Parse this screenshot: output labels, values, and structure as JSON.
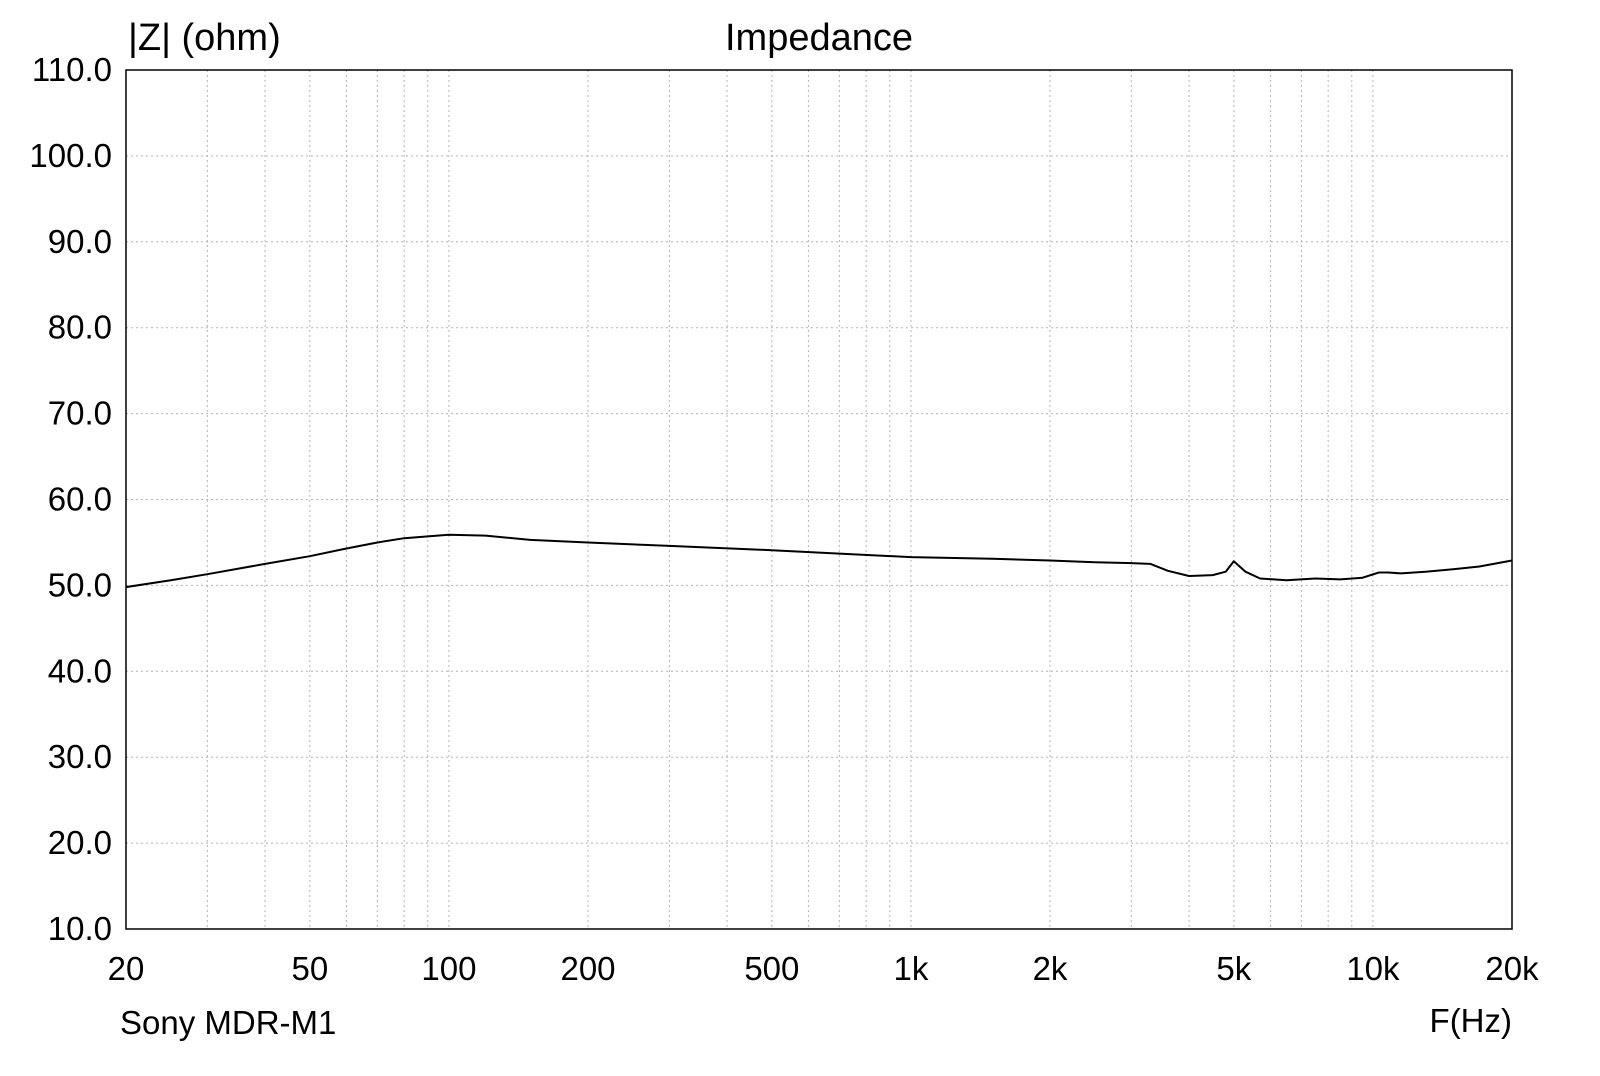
{
  "chart_data": {
    "type": "line",
    "title": "Impedance",
    "ylabel": "|Z| (ohm)",
    "xlabel": "F(Hz)",
    "subtitle": "Sony MDR-M1",
    "x_scale": "log",
    "xlim": [
      20,
      20000
    ],
    "ylim": [
      10,
      110
    ],
    "grid": true,
    "x_ticks": [
      {
        "value": 20,
        "label": "20"
      },
      {
        "value": 50,
        "label": "50"
      },
      {
        "value": 100,
        "label": "100"
      },
      {
        "value": 200,
        "label": "200"
      },
      {
        "value": 500,
        "label": "500"
      },
      {
        "value": 1000,
        "label": "1k"
      },
      {
        "value": 2000,
        "label": "2k"
      },
      {
        "value": 5000,
        "label": "5k"
      },
      {
        "value": 10000,
        "label": "10k"
      },
      {
        "value": 20000,
        "label": "20k"
      }
    ],
    "y_ticks": [
      {
        "value": 110,
        "label": "110.0"
      },
      {
        "value": 100,
        "label": "100.0"
      },
      {
        "value": 90,
        "label": "90.0"
      },
      {
        "value": 80,
        "label": "80.0"
      },
      {
        "value": 70,
        "label": "70.0"
      },
      {
        "value": 60,
        "label": "60.0"
      },
      {
        "value": 50,
        "label": "50.0"
      },
      {
        "value": 40,
        "label": "40.0"
      },
      {
        "value": 30,
        "label": "30.0"
      },
      {
        "value": 20,
        "label": "20.0"
      },
      {
        "value": 10,
        "label": "10.0"
      }
    ],
    "series": [
      {
        "color": "#000000",
        "x": [
          20,
          25,
          30,
          40,
          50,
          60,
          70,
          80,
          90,
          100,
          120,
          150,
          200,
          300,
          500,
          700,
          1000,
          1500,
          2000,
          2500,
          3000,
          3300,
          3600,
          4000,
          4500,
          4800,
          5000,
          5300,
          5700,
          6500,
          7500,
          8500,
          9500,
          10300,
          10800,
          11500,
          13000,
          15000,
          17000,
          20000
        ],
        "y": [
          49.8,
          50.6,
          51.3,
          52.5,
          53.4,
          54.3,
          55.0,
          55.5,
          55.7,
          55.9,
          55.8,
          55.3,
          55.0,
          54.6,
          54.1,
          53.7,
          53.3,
          53.1,
          52.9,
          52.7,
          52.6,
          52.5,
          51.7,
          51.1,
          51.2,
          51.6,
          52.8,
          51.6,
          50.8,
          50.6,
          50.8,
          50.7,
          50.9,
          51.5,
          51.5,
          51.4,
          51.6,
          51.9,
          52.2,
          52.9
        ]
      }
    ]
  }
}
